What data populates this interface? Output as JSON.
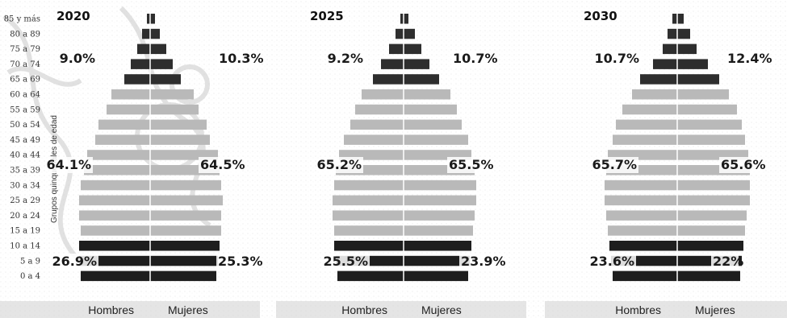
{
  "chart_data": {
    "type": "bar",
    "subtype": "population-pyramid",
    "y_axis_label": "Grupos quinquenales de edad",
    "age_groups": [
      "0 a 4",
      "5 a 9",
      "10 a 14",
      "15 a 19",
      "20 a 24",
      "25 a 29",
      "30 a 34",
      "35 a 39",
      "40 a 44",
      "45 a 49",
      "50 a 54",
      "55 a 59",
      "60 a 64",
      "65 a 69",
      "70 a 74",
      "75 a 79",
      "80 a 89",
      "85 y más"
    ],
    "x_labels": {
      "left": "Hombres",
      "right": "Mujeres"
    },
    "colors": {
      "young": "#1e1e1e",
      "working": "#b9b9b9",
      "old": "#2e2e2e"
    },
    "panels": [
      {
        "year": "2020",
        "old_pct": {
          "hombres": "9.0%",
          "mujeres": "10.3%"
        },
        "working_pct": {
          "hombres": "64.1%",
          "mujeres": "64.5%"
        },
        "young_pct": {
          "hombres": "26.9%",
          "mujeres": "25.3%"
        },
        "hombres": [
          4.3,
          4.4,
          4.4,
          4.3,
          4.4,
          4.4,
          4.3,
          4.1,
          3.9,
          3.4,
          3.2,
          2.7,
          2.4,
          1.6,
          1.2,
          0.8,
          0.5,
          0.2
        ],
        "mujeres": [
          4.1,
          4.2,
          4.3,
          4.4,
          4.4,
          4.5,
          4.4,
          4.3,
          4.2,
          3.7,
          3.5,
          3.0,
          2.7,
          1.9,
          1.4,
          1.0,
          0.6,
          0.3
        ]
      },
      {
        "year": "2025",
        "old_pct": {
          "hombres": "9.2%",
          "mujeres": "10.7%"
        },
        "working_pct": {
          "hombres": "65.2%",
          "mujeres": "65.5%"
        },
        "young_pct": {
          "hombres": "25.5%",
          "mujeres": "23.9%"
        },
        "hombres": [
          4.1,
          4.2,
          4.3,
          4.3,
          4.4,
          4.4,
          4.3,
          4.2,
          4.0,
          3.7,
          3.3,
          3.0,
          2.6,
          1.9,
          1.4,
          0.9,
          0.5,
          0.2
        ],
        "mujeres": [
          4.0,
          4.1,
          4.2,
          4.3,
          4.4,
          4.5,
          4.5,
          4.4,
          4.2,
          4.0,
          3.6,
          3.3,
          2.9,
          2.2,
          1.6,
          1.1,
          0.7,
          0.3
        ]
      },
      {
        "year": "2030",
        "old_pct": {
          "hombres": "10.7%",
          "mujeres": "12.4%"
        },
        "working_pct": {
          "hombres": "65.7%",
          "mujeres": "65.6%"
        },
        "young_pct": {
          "hombres": "23.6%",
          "mujeres": "22%"
        },
        "hombres": [
          4.0,
          4.1,
          4.2,
          4.3,
          4.4,
          4.5,
          4.5,
          4.4,
          4.3,
          4.0,
          3.8,
          3.4,
          2.8,
          2.3,
          1.5,
          0.9,
          0.6,
          0.3
        ],
        "mujeres": [
          3.9,
          4.0,
          4.1,
          4.2,
          4.3,
          4.5,
          4.5,
          4.5,
          4.4,
          4.2,
          4.0,
          3.7,
          3.2,
          2.6,
          1.9,
          1.2,
          0.8,
          0.4
        ]
      }
    ]
  }
}
